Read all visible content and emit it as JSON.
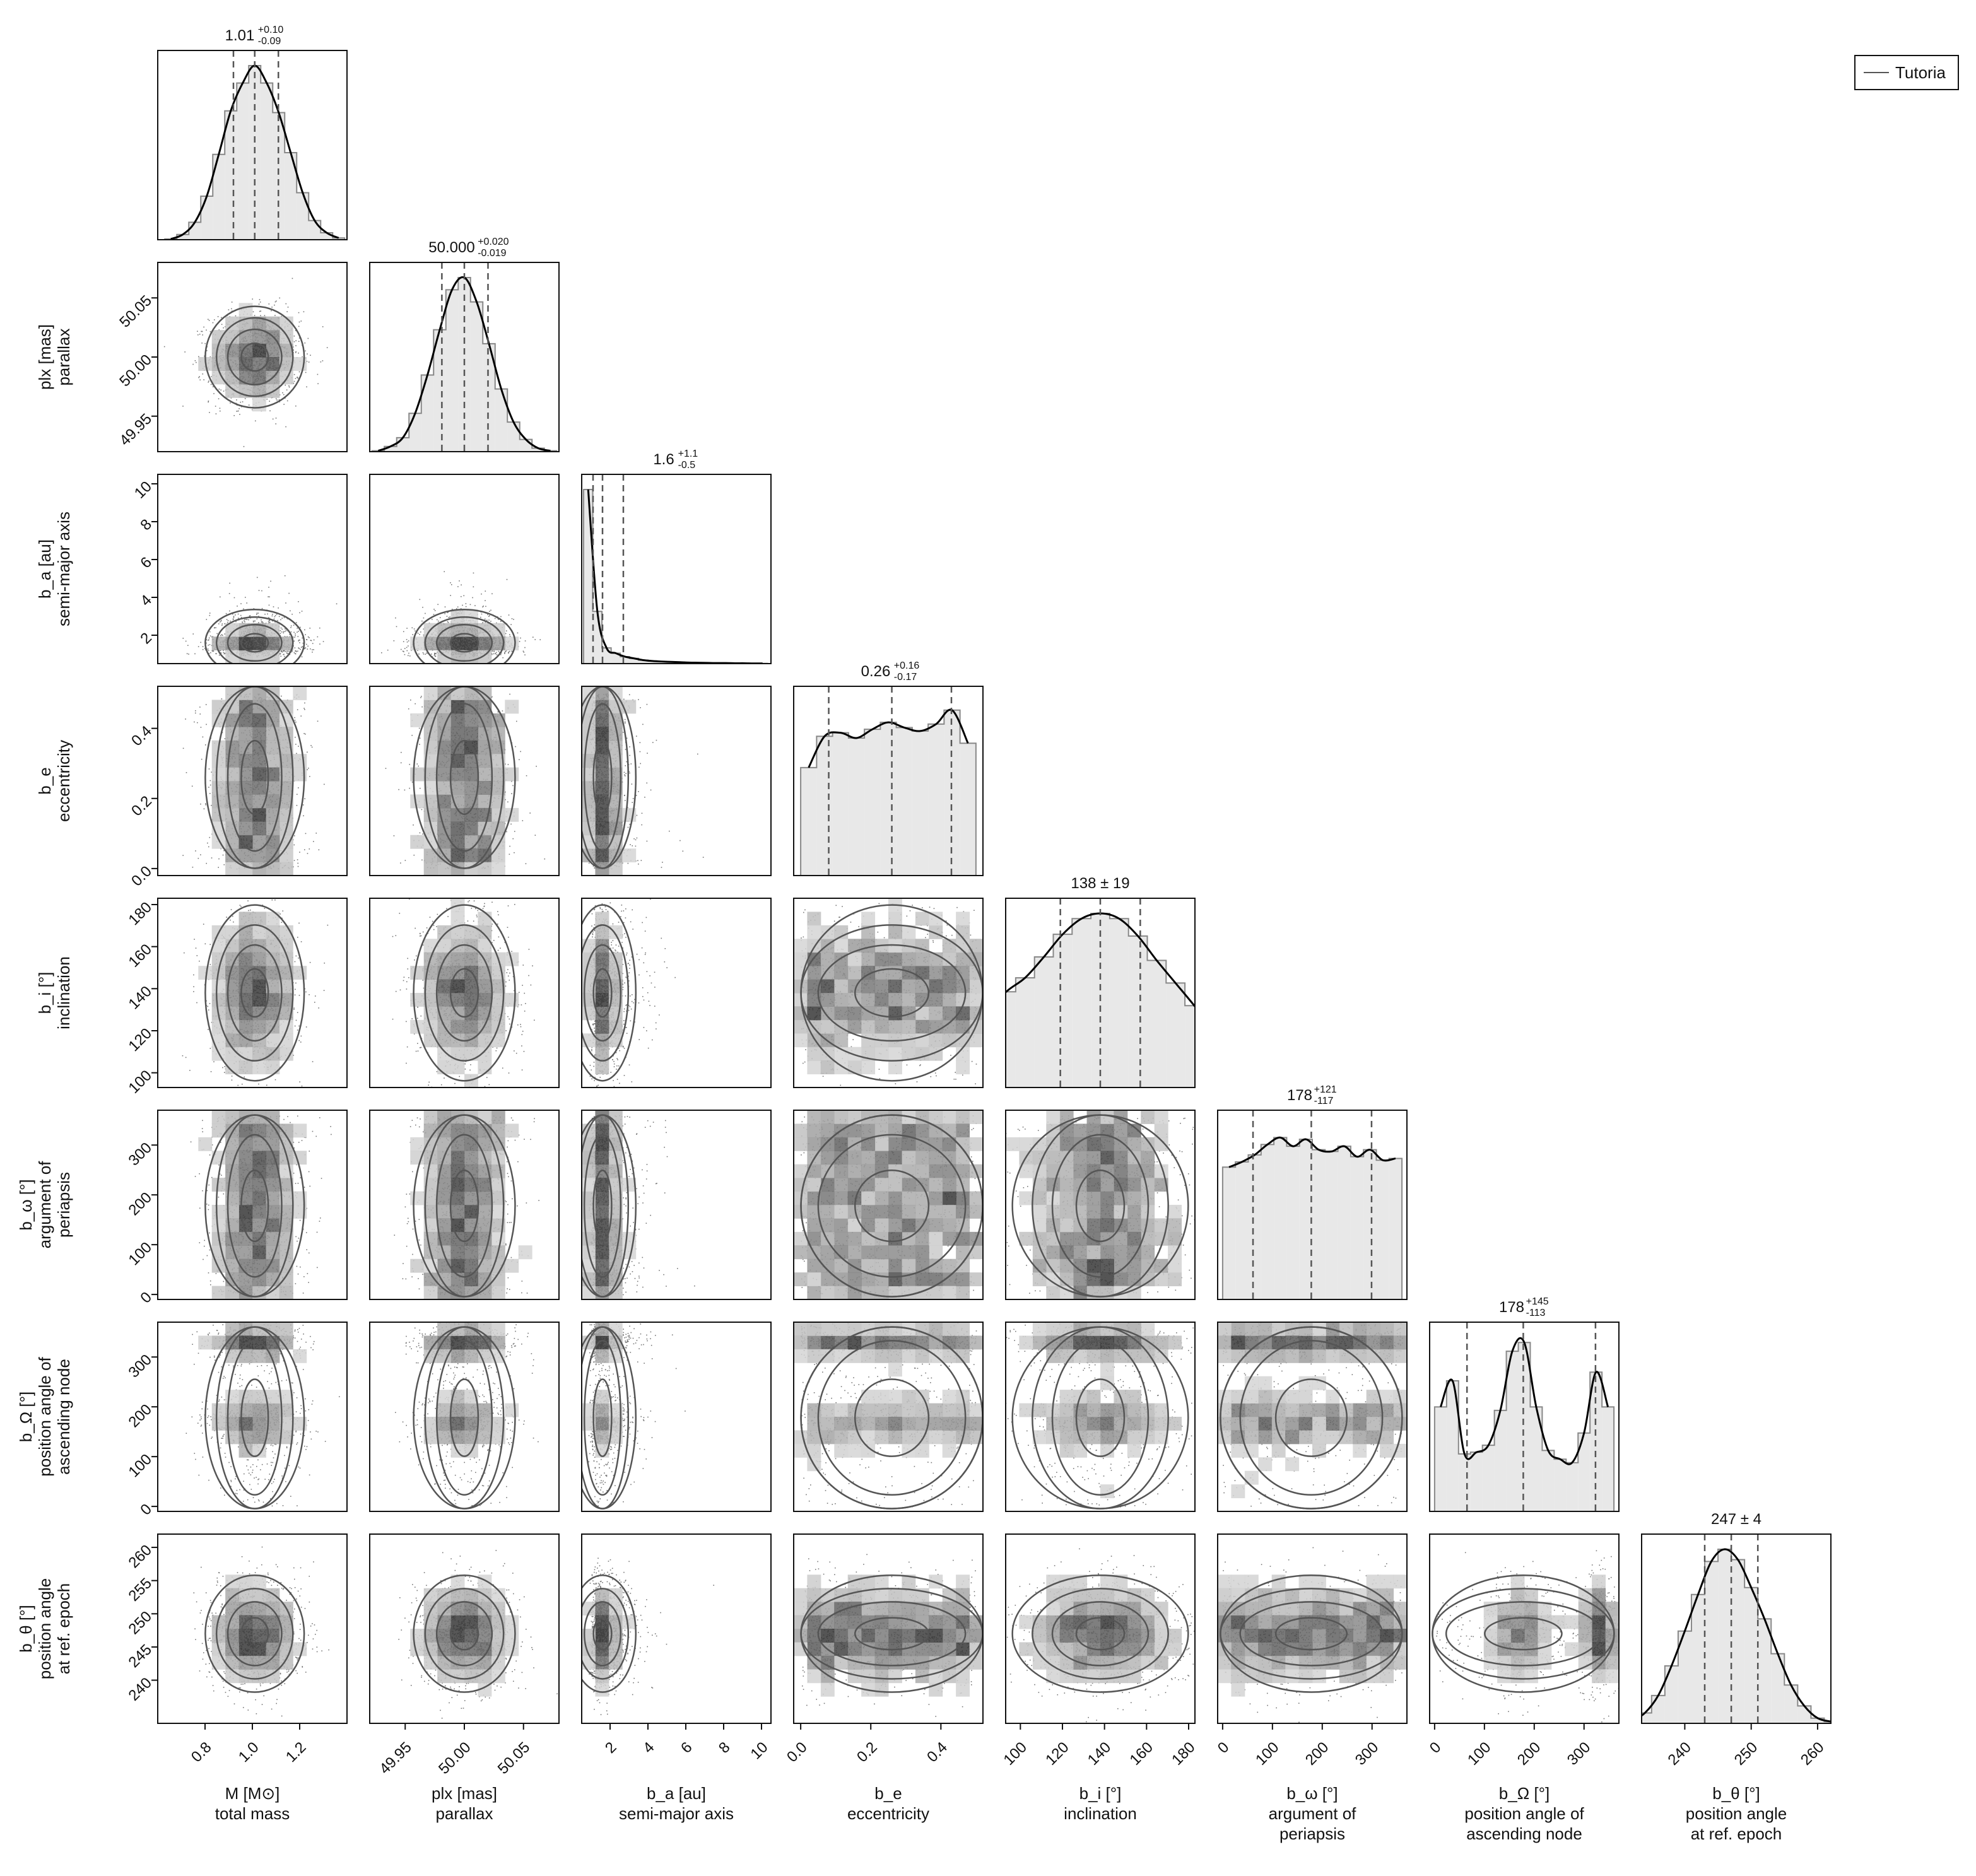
{
  "legend": {
    "label": "Tutoria",
    "placement": "top-right"
  },
  "colors": {
    "frame": "#111111",
    "fill": "#e8e8e8",
    "kde": "#000000",
    "hist": "#888888",
    "contour": "#555555",
    "quantile": "#555555"
  },
  "chart_data": {
    "type": "corner",
    "grid": false,
    "params": [
      {
        "label": "M [M⊙]",
        "desc": [
          "total mass"
        ],
        "ylabel": "",
        "title": "1.01",
        "err_plus": "+0.10",
        "err_minus": "-0.09",
        "pm": "",
        "range": [
          0.6,
          1.4
        ],
        "ticks": [
          0.8,
          1.0,
          1.2
        ],
        "tick_labels": [
          "0.8",
          "1.0",
          "1.2"
        ],
        "median": 1.01,
        "q_low": 0.92,
        "q_high": 1.11,
        "hist": [
          0.004,
          0.03,
          0.1,
          0.25,
          0.49,
          0.74,
          0.9,
          1.0,
          0.9,
          0.73,
          0.5,
          0.27,
          0.11,
          0.04,
          0.01
        ],
        "kde": "gauss"
      },
      {
        "label": "plx [mas]",
        "desc": [
          "parallax"
        ],
        "ylabel": "plx [mas]",
        "title": "50.000",
        "err_plus": "+0.020",
        "err_minus": "-0.019",
        "pm": "",
        "range": [
          49.92,
          50.08
        ],
        "ticks": [
          49.95,
          50.0,
          50.05
        ],
        "tick_labels": [
          "49.95",
          "50.00",
          "50.05"
        ],
        "median": 50.0,
        "q_low": 49.981,
        "q_high": 50.02,
        "hist": [
          0.005,
          0.03,
          0.08,
          0.22,
          0.44,
          0.7,
          0.93,
          1.0,
          0.86,
          0.62,
          0.36,
          0.17,
          0.07,
          0.02,
          0.005
        ],
        "kde": "gauss"
      },
      {
        "label": "b_a [au]",
        "desc": [
          "semi-major axis"
        ],
        "ylabel": "b_a [au]",
        "title": "1.6",
        "err_plus": "+1.1",
        "err_minus": "-0.5",
        "pm": "",
        "range": [
          0.5,
          10.5
        ],
        "ticks": [
          2,
          4,
          6,
          8,
          10
        ],
        "tick_labels": [
          "2",
          "4",
          "6",
          "8",
          "10"
        ],
        "yticks": [
          2,
          4,
          6,
          8,
          10
        ],
        "median": 1.6,
        "q_low": 1.1,
        "q_high": 2.7,
        "hist": [
          1.0,
          0.3,
          0.09,
          0.06,
          0.04,
          0.03,
          0.02,
          0.015,
          0.012,
          0.01,
          0.008,
          0.006,
          0.005,
          0.004,
          0.003,
          0.003,
          0.002,
          0.002,
          0.001,
          0.001
        ],
        "kde": "skew"
      },
      {
        "label": "b_e",
        "desc": [
          "eccentricity"
        ],
        "ylabel": "b_e",
        "title": "0.26",
        "err_plus": "+0.16",
        "err_minus": "-0.17",
        "pm": "",
        "range": [
          -0.02,
          0.52
        ],
        "ticks": [
          0.0,
          0.2,
          0.4
        ],
        "tick_labels": [
          "0.0",
          "0.2",
          "0.4"
        ],
        "median": 0.26,
        "q_low": 0.08,
        "q_high": 0.43,
        "hist": [
          0.62,
          0.8,
          0.82,
          0.79,
          0.84,
          0.88,
          0.85,
          0.83,
          0.87,
          0.95,
          0.76
        ],
        "kde": "flat_e"
      },
      {
        "label": "b_i [°]",
        "desc": [
          "inclination"
        ],
        "ylabel": "b_i [°]",
        "title": "",
        "err_plus": "",
        "err_minus": "",
        "pm": "138 ± 19",
        "range": [
          93,
          183
        ],
        "ticks": [
          100,
          120,
          140,
          160,
          180
        ],
        "tick_labels": [
          "100",
          "120",
          "140",
          "160",
          "180"
        ],
        "median": 138,
        "q_low": 119,
        "q_high": 157,
        "hist": [
          0.08,
          0.22,
          0.43,
          0.55,
          0.63,
          0.75,
          0.88,
          0.97,
          1.0,
          0.97,
          0.87,
          0.73,
          0.6,
          0.47,
          0.33,
          0.2,
          0.06
        ],
        "kde": "gauss"
      },
      {
        "label": "b_ω [°]",
        "desc": [
          "argument of",
          "periapsis"
        ],
        "ylabel": "b_ω [°]",
        "title": "178",
        "err_plus": "+121",
        "err_minus": "-117",
        "pm": "",
        "range": [
          -10,
          370
        ],
        "ticks": [
          0,
          100,
          200,
          300
        ],
        "tick_labels": [
          "0",
          "100",
          "200",
          "300"
        ],
        "median": 178,
        "q_low": 61,
        "q_high": 299,
        "hist": [
          0.76,
          0.79,
          0.83,
          0.89,
          0.93,
          0.88,
          0.92,
          0.86,
          0.85,
          0.88,
          0.82,
          0.86,
          0.8,
          0.81
        ],
        "kde": "flat_w"
      },
      {
        "label": "b_Ω [°]",
        "desc": [
          "position angle of",
          "ascending node"
        ],
        "ylabel": "b_Ω [°]",
        "title": "178",
        "err_plus": "+145",
        "err_minus": "-113",
        "pm": "",
        "range": [
          -10,
          370
        ],
        "ticks": [
          0,
          100,
          200,
          300
        ],
        "tick_labels": [
          "0",
          "100",
          "200",
          "300"
        ],
        "median": 178,
        "q_low": 65,
        "q_high": 323,
        "hist": [
          0.6,
          0.75,
          0.33,
          0.34,
          0.38,
          0.58,
          0.92,
          0.97,
          0.6,
          0.35,
          0.3,
          0.28,
          0.45,
          0.8,
          0.6
        ],
        "kde": "bimodal"
      },
      {
        "label": "b_θ [°]",
        "desc": [
          "position angle",
          "at ref. epoch"
        ],
        "ylabel": "b_θ [°]",
        "title": "",
        "err_plus": "",
        "err_minus": "",
        "pm": "247 ± 4",
        "range": [
          233.5,
          262
        ],
        "ticks": [
          240,
          250,
          260
        ],
        "tick_labels": [
          "240",
          "250",
          "260"
        ],
        "median": 247,
        "q_low": 243,
        "q_high": 251,
        "hist": [
          0.01,
          0.06,
          0.16,
          0.33,
          0.53,
          0.74,
          0.93,
          1.0,
          0.94,
          0.78,
          0.6,
          0.4,
          0.22,
          0.1,
          0.03,
          0.01
        ],
        "kde": "gauss"
      }
    ],
    "ylabel_lines": {
      "1": [
        "plx [mas]",
        "parallax"
      ],
      "2": [
        "b_a [au]",
        "semi-major axis"
      ],
      "3": [
        "b_e",
        "eccentricity"
      ],
      "4": [
        "b_i [°]",
        "inclination"
      ],
      "5": [
        "b_ω [°]",
        "argument of",
        "periapsis"
      ],
      "6": [
        "b_Ω [°]",
        "position angle of",
        "ascending node"
      ],
      "7": [
        "b_θ [°]",
        "position angle",
        "at ref. epoch"
      ]
    },
    "ytick_labels": {
      "1": [
        "49.95",
        "50.00",
        "50.05"
      ],
      "2": [
        "2",
        "4",
        "6",
        "8",
        "10"
      ],
      "3": [
        "0.0",
        "0.2",
        "0.4"
      ],
      "4": [
        "100",
        "120",
        "140",
        "160",
        "180"
      ],
      "5": [
        "0",
        "100",
        "200",
        "300"
      ],
      "6": [
        "0",
        "100",
        "200",
        "300"
      ],
      "7": [
        "240",
        "245",
        "250",
        "255",
        "260"
      ]
    },
    "ytick_values": {
      "1": [
        49.95,
        50.0,
        50.05
      ],
      "2": [
        2,
        4,
        6,
        8,
        10
      ],
      "3": [
        0.0,
        0.2,
        0.4
      ],
      "4": [
        100,
        120,
        140,
        160,
        180
      ],
      "5": [
        0,
        100,
        200,
        300
      ],
      "6": [
        0,
        100,
        200,
        300
      ],
      "7": [
        240,
        245,
        250,
        255,
        260
      ]
    }
  }
}
